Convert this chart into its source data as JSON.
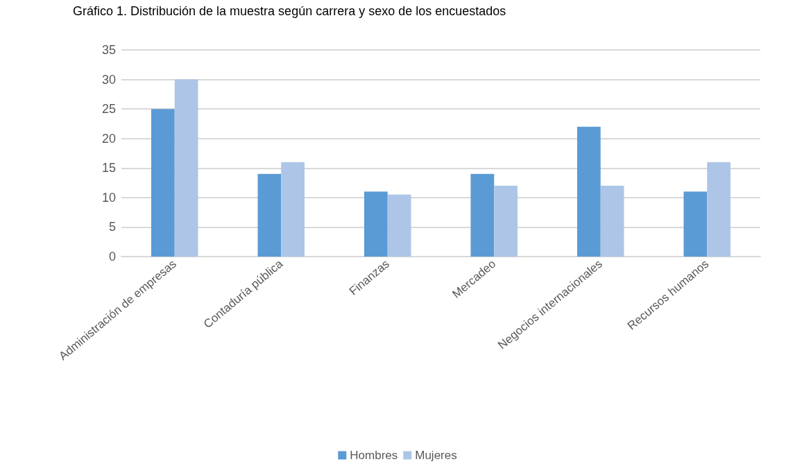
{
  "chart_data": {
    "type": "bar",
    "title": "Gráfico 1. Distribución de la muestra según carrera y sexo de los encuestados",
    "categories": [
      "Administración de empresas",
      "Contaduría pública",
      "Finanzas",
      "Mercadeo",
      "Negocios internacionales",
      "Recursos humanos"
    ],
    "series": [
      {
        "name": "Hombres",
        "color": "#5b9bd5",
        "values": [
          25,
          14,
          11,
          14,
          22,
          11
        ]
      },
      {
        "name": "Mujeres",
        "color": "#adc6e7",
        "values": [
          30,
          16,
          10.5,
          12,
          12,
          16
        ]
      }
    ],
    "ylim": [
      0,
      35
    ],
    "yticks": [
      0,
      5,
      10,
      15,
      20,
      25,
      30,
      35
    ],
    "grid": "y",
    "legend": "bottom"
  }
}
